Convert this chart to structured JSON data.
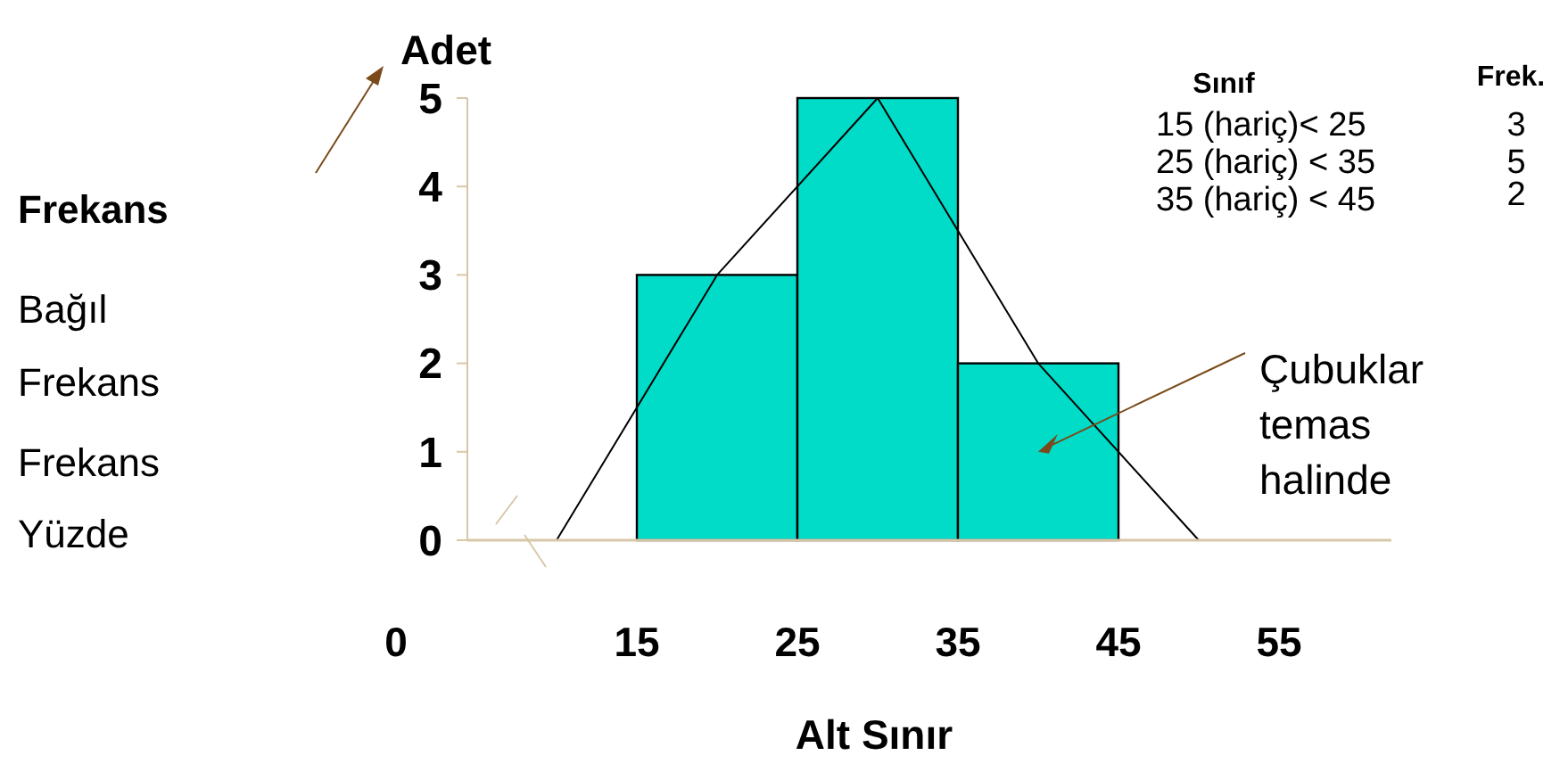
{
  "chart_data": {
    "type": "histogram",
    "xlabel": "Alt Sınır",
    "ylabel": "Adet",
    "bins": [
      15,
      25,
      35,
      45
    ],
    "values": [
      3,
      5,
      2
    ],
    "color": "#00dcc8",
    "series": [
      {
        "type": "line",
        "x": [
          10,
          20,
          30,
          40,
          50
        ],
        "values": [
          0,
          3,
          5,
          2,
          0
        ],
        "color": "#000000"
      }
    ],
    "marker": "none",
    "line_style": "solid",
    "grid": false,
    "xlim": [
      0,
      62
    ],
    "xticks": [
      0,
      15,
      25,
      35,
      45,
      55
    ],
    "ylim": [
      0,
      5
    ],
    "yticks": [
      0,
      1,
      2,
      3,
      4,
      5
    ],
    "annotations": [
      "Sınıf",
      "Frek.",
      "15  (hariç)< 25",
      "25 (hariç) < 35",
      "35 (hariç) < 45",
      "Çubuklar temas halinde",
      "Frekans",
      "Bağıl Frekans",
      "Frekans Yüzde",
      "3",
      "5",
      "2"
    ]
  }
}
